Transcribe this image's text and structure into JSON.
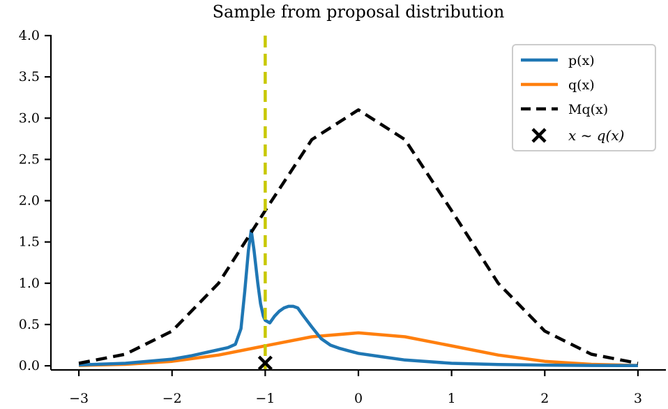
{
  "chart_data": {
    "type": "line",
    "title": "Sample from proposal distribution",
    "xlabel": "",
    "ylabel": "",
    "xlim": [
      -3.3,
      3.3
    ],
    "ylim": [
      -0.05,
      4.0
    ],
    "xticks": [
      -3,
      -2,
      -1,
      0,
      1,
      2,
      3
    ],
    "xtick_labels": [
      "−3",
      "−2",
      "−1",
      "0",
      "1",
      "2",
      "3"
    ],
    "yticks": [
      0.0,
      0.5,
      1.0,
      1.5,
      2.0,
      2.5,
      3.0,
      3.5,
      4.0
    ],
    "ytick_labels": [
      "0.0",
      "0.5",
      "1.0",
      "1.5",
      "2.0",
      "2.5",
      "3.0",
      "3.5",
      "4.0"
    ],
    "grid": false,
    "legend_position": "top-right",
    "series": [
      {
        "name": "p(x)",
        "color": "#1f77b4",
        "style": "solid",
        "x": [
          -3.0,
          -2.5,
          -2.0,
          -1.8,
          -1.6,
          -1.4,
          -1.32,
          -1.26,
          -1.22,
          -1.18,
          -1.15,
          -1.12,
          -1.08,
          -1.05,
          -1.02,
          -1.0,
          -0.95,
          -0.9,
          -0.85,
          -0.8,
          -0.75,
          -0.7,
          -0.65,
          -0.6,
          -0.5,
          -0.4,
          -0.3,
          -0.2,
          -0.1,
          0.0,
          0.25,
          0.5,
          1.0,
          1.5,
          2.0,
          2.5,
          3.0
        ],
        "y": [
          0.01,
          0.03,
          0.08,
          0.12,
          0.17,
          0.22,
          0.26,
          0.45,
          0.9,
          1.4,
          1.64,
          1.4,
          1.0,
          0.75,
          0.6,
          0.55,
          0.52,
          0.6,
          0.66,
          0.7,
          0.72,
          0.72,
          0.7,
          0.62,
          0.47,
          0.33,
          0.25,
          0.21,
          0.18,
          0.15,
          0.11,
          0.07,
          0.03,
          0.015,
          0.008,
          0.004,
          0.002
        ]
      },
      {
        "name": "q(x)",
        "color": "#ff7f0e",
        "style": "solid",
        "x": [
          -3.0,
          -2.5,
          -2.0,
          -1.5,
          -1.0,
          -0.5,
          0.0,
          0.5,
          1.0,
          1.5,
          2.0,
          2.5,
          3.0
        ],
        "y": [
          0.004,
          0.018,
          0.054,
          0.13,
          0.242,
          0.352,
          0.399,
          0.352,
          0.242,
          0.13,
          0.054,
          0.018,
          0.004
        ]
      },
      {
        "name": "Mq(x)",
        "color": "#000000",
        "style": "dashed",
        "x": [
          -3.0,
          -2.5,
          -2.0,
          -1.5,
          -1.0,
          -0.5,
          0.0,
          0.5,
          1.0,
          1.5,
          2.0,
          2.5,
          3.0
        ],
        "y": [
          0.03,
          0.14,
          0.42,
          1.0,
          1.88,
          2.74,
          3.1,
          2.74,
          1.88,
          1.0,
          0.42,
          0.14,
          0.03
        ]
      }
    ],
    "sample": {
      "name": "x ~ q(x)",
      "x": -1.0,
      "y": 0.0,
      "marker": "x",
      "color": "#000000"
    },
    "vertical_line": {
      "x": -1.0,
      "color": "#c8c800",
      "style": "dashed"
    }
  }
}
